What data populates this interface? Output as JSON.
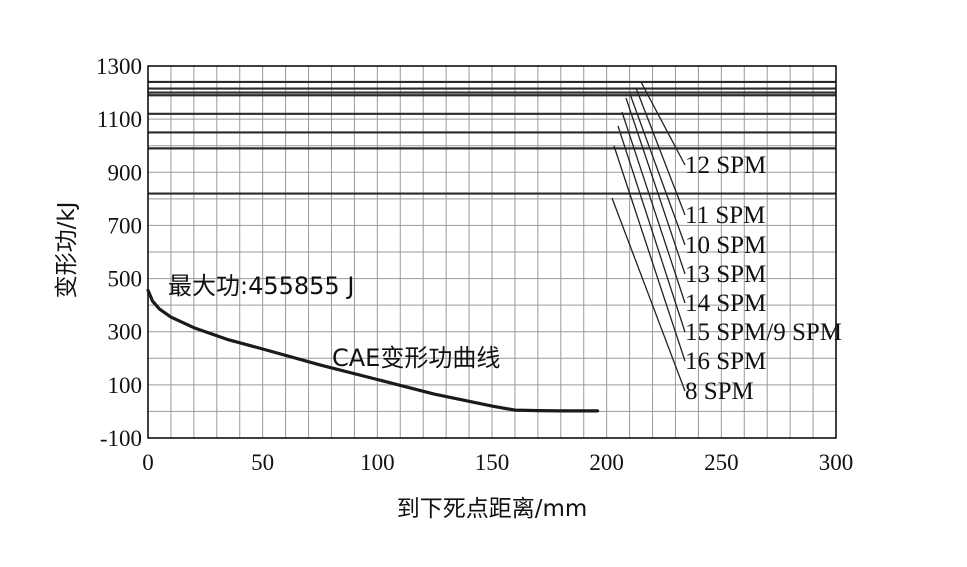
{
  "chart_data": {
    "type": "line",
    "title": "",
    "xlabel": "到下死点距离/mm",
    "ylabel": "变形功/kJ",
    "xlim": [
      0,
      300
    ],
    "ylim": [
      -100,
      1300
    ],
    "x_ticks": [
      "0",
      "50",
      "100",
      "150",
      "200",
      "250",
      "300"
    ],
    "y_ticks": [
      "1300",
      "1100",
      "900",
      "700",
      "500",
      "300",
      "100",
      "-100"
    ],
    "grid": true,
    "series": [
      {
        "name": "CAE变形功曲线",
        "x": [
          0,
          2,
          5,
          10,
          20,
          35,
          50,
          75,
          100,
          125,
          150,
          160,
          170,
          180,
          196
        ],
        "y": [
          456,
          415,
          385,
          355,
          315,
          270,
          235,
          175,
          120,
          65,
          20,
          5,
          3,
          2,
          2
        ]
      }
    ],
    "capacity_lines": [
      {
        "label": "12 SPM",
        "y": 1240
      },
      {
        "label": "11 SPM",
        "y": 1215
      },
      {
        "label": "10 SPM",
        "y": 1200
      },
      {
        "label": "13 SPM",
        "y": 1190
      },
      {
        "label": "14 SPM",
        "y": 1120
      },
      {
        "label": "15 SPM/9 SPM",
        "y": 1050
      },
      {
        "label": "16 SPM",
        "y": 990
      },
      {
        "label": "8 SPM",
        "y": 820
      }
    ],
    "annotations": {
      "max_work": "最大功:455855 J",
      "curve_label": "CAE变形功曲线"
    },
    "colors": {
      "line": "#1a1a1a",
      "grid": "#9a9a9a",
      "axis": "#111111"
    }
  }
}
